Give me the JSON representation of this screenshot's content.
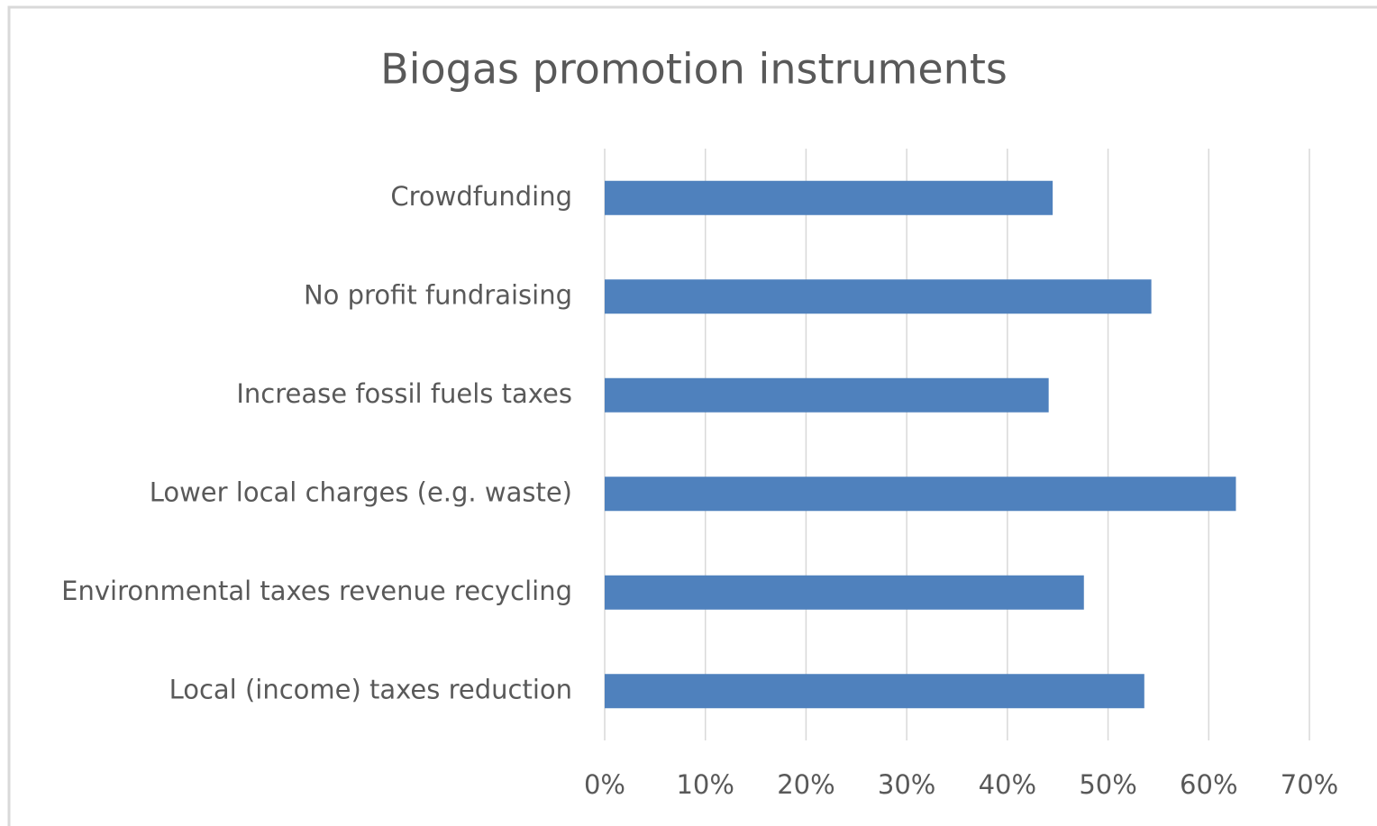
{
  "chart_data": {
    "type": "bar",
    "orientation": "horizontal",
    "title": "Biogas promotion instruments",
    "categories": [
      "Crowdfunding",
      "No profit fundraising",
      "Increase fossil fuels taxes",
      "Lower local charges (e.g. waste)",
      "Environmental taxes revenue recycling",
      "Local (income) taxes reduction"
    ],
    "values": [
      44.5,
      54.3,
      44.1,
      62.7,
      47.6,
      53.6
    ],
    "color": "#4f81bd",
    "xlim": [
      0,
      70
    ],
    "xticks": [
      {
        "value": 0,
        "label": "0%"
      },
      {
        "value": 10,
        "label": "10%"
      },
      {
        "value": 20,
        "label": "20%"
      },
      {
        "value": 30,
        "label": "30%"
      },
      {
        "value": 40,
        "label": "40%"
      },
      {
        "value": 50,
        "label": "50%"
      },
      {
        "value": 60,
        "label": "60%"
      },
      {
        "value": 70,
        "label": "70%"
      }
    ],
    "grid": true
  }
}
